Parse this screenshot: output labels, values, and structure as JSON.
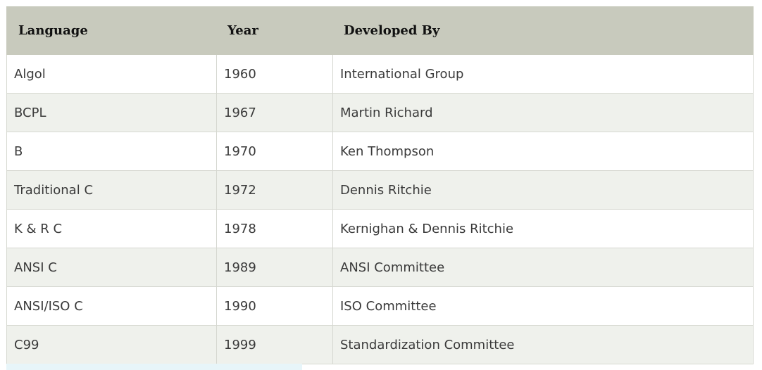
{
  "table": {
    "headers": [
      "Language",
      "Year",
      "Developed By"
    ],
    "rows": [
      [
        "Algol",
        "1960",
        "International Group"
      ],
      [
        "BCPL",
        "1967",
        "Martin Richard"
      ],
      [
        "B",
        "1970",
        "Ken Thompson"
      ],
      [
        "Traditional C",
        "1972",
        "Dennis Ritchie"
      ],
      [
        "K & R C",
        "1978",
        "Kernighan & Dennis Ritchie"
      ],
      [
        "ANSI C",
        "1989",
        "ANSI Committee"
      ],
      [
        "ANSI/ISO C",
        "1990",
        "ISO Committee"
      ],
      [
        "C99",
        "1999",
        "Standardization Committee"
      ]
    ]
  },
  "colors": {
    "header_bg": "#c8cabd",
    "alt_row_bg": "#eff1ec",
    "border": "#d6d8d1"
  }
}
